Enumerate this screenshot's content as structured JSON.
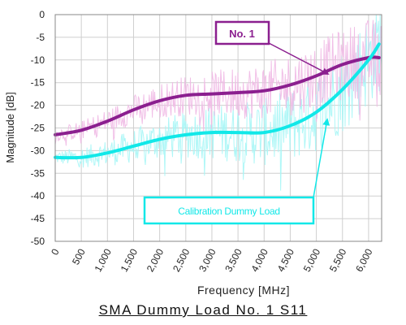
{
  "chart_data": {
    "type": "line",
    "title": "SMA  Dummy  Load  No. 1  S11",
    "xlabel": "Frequency [MHz]",
    "ylabel": "Magnitude [dB]",
    "xlim": [
      0,
      6250
    ],
    "ylim": [
      -50,
      0
    ],
    "x_ticks": [
      "0",
      "500",
      "1,000",
      "1,500",
      "2,000",
      "2,500",
      "3,000",
      "3,500",
      "4,000",
      "4,500",
      "5,000",
      "5,500",
      "6,000"
    ],
    "y_ticks": [
      "0",
      "-5",
      "-10",
      "-15",
      "-20",
      "-25",
      "-30",
      "-35",
      "-40",
      "-45",
      "-50"
    ],
    "grid": true,
    "x": [
      0,
      500,
      1000,
      1500,
      2000,
      2500,
      3000,
      3500,
      4000,
      4500,
      5000,
      5500,
      6000,
      6200
    ],
    "series": [
      {
        "name": "No. 1",
        "color": "#8b1f8f",
        "raw_color": "#f0b8e4",
        "values": [
          -26.5,
          -25.5,
          -23.5,
          -21,
          -19,
          -17.8,
          -17.5,
          -17.2,
          -16.8,
          -15.5,
          -13.5,
          -11,
          -9.5,
          -9.5
        ]
      },
      {
        "name": "Calibration Dummy Load",
        "color": "#12e8e8",
        "raw_color": "#a6f6f6",
        "values": [
          -31.5,
          -31.5,
          -30.5,
          -29,
          -27.5,
          -26.5,
          -26,
          -26,
          -26,
          -24.5,
          -21.5,
          -16.5,
          -10,
          -6.5
        ]
      }
    ],
    "annotations": [
      {
        "text": "No. 1",
        "color": "#8b1f8f"
      },
      {
        "text": "Calibration Dummy Load",
        "color": "#12e8e8"
      }
    ]
  }
}
